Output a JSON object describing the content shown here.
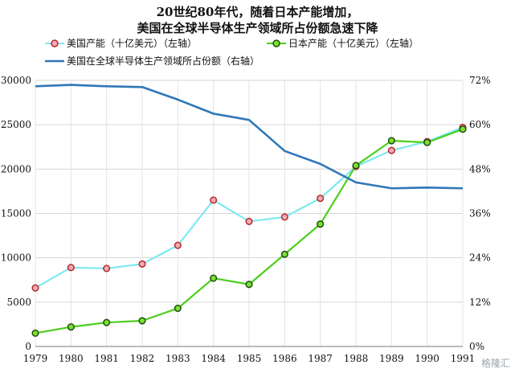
{
  "chart_data": {
    "type": "line",
    "title": "20世纪80年代，随着日本产能增加，",
    "subtitle": "美国在全球半导体生产领域所占份额急速下降",
    "categories": [
      "1979",
      "1980",
      "1981",
      "1982",
      "1983",
      "1984",
      "1985",
      "1986",
      "1987",
      "1988",
      "1989",
      "1990",
      "1991"
    ],
    "left_axis": {
      "ylim": [
        0,
        30000
      ],
      "ticks": [
        "0",
        "5000",
        "10000",
        "15000",
        "20000",
        "25000",
        "30000"
      ],
      "tick_values": [
        0,
        5000,
        10000,
        15000,
        20000,
        25000,
        30000
      ]
    },
    "right_axis": {
      "ylim": [
        0,
        72
      ],
      "ticks": [
        "0%",
        "12%",
        "24%",
        "36%",
        "48%",
        "60%",
        "72%"
      ],
      "tick_values": [
        0,
        12,
        24,
        36,
        48,
        60,
        72
      ]
    },
    "grid": true,
    "legend_position": "top-left",
    "series": [
      {
        "name": "美国产能（十亿美元）（左轴）",
        "axis": "left",
        "color": "#7fe8ef",
        "marker_fill": "#f4a9b5",
        "marker_edge": "#b02a2a",
        "values": [
          6600,
          8900,
          8800,
          9300,
          11400,
          16500,
          14100,
          14600,
          16700,
          20300,
          22100,
          23100,
          24700
        ]
      },
      {
        "name": "日本产能（十亿美元）（左轴）",
        "axis": "left",
        "color": "#4ccf1d",
        "marker_fill": "#7be02f",
        "marker_edge": "#1f4d0f",
        "values": [
          1500,
          2200,
          2700,
          2900,
          4300,
          7700,
          7000,
          10400,
          13800,
          20400,
          23200,
          23000,
          24500
        ]
      },
      {
        "name": "美国在全球半导体生产领域所占份额（右轴）",
        "axis": "right",
        "color": "#2f77b8",
        "values": [
          70.4,
          70.8,
          70.4,
          70.2,
          66.8,
          63.0,
          61.3,
          52.9,
          49.4,
          44.4,
          42.8,
          43.0,
          42.8
        ]
      }
    ]
  },
  "watermark": "格隆汇"
}
